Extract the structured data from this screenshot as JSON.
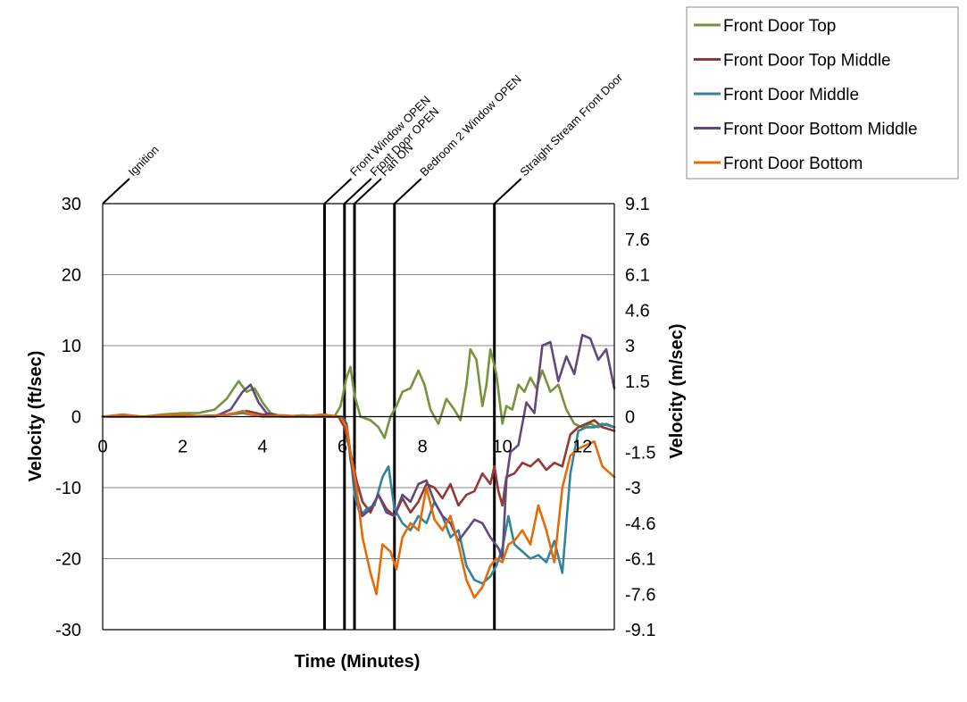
{
  "chart_data": {
    "type": "line",
    "xlabel": "Time (Minutes)",
    "ylabel": "Velocity (ft/sec)",
    "y2label": "Velocity (m/sec)",
    "xlim": [
      0,
      12.8
    ],
    "ylim": [
      -30,
      30
    ],
    "x_ticks": [
      0,
      2,
      4,
      6,
      8,
      10,
      12
    ],
    "y_ticks": [
      30,
      20,
      10,
      0,
      -10,
      -20,
      -30
    ],
    "y2_ticks": [
      "9.1",
      "7.6",
      "6.1",
      "4.6",
      "3",
      "1.5",
      "0",
      "-1.5",
      "-3",
      "-4.6",
      "-6.1",
      "-7.6",
      "-9.1"
    ],
    "grid": "horizontal",
    "legend_position": "top-right",
    "events": [
      {
        "label": "Ignition",
        "x": 0
      },
      {
        "label": "Front Window OPEN",
        "x": 5.55
      },
      {
        "label": "Front Door OPEN",
        "x": 6.05
      },
      {
        "label": "Fan ON",
        "x": 6.3
      },
      {
        "label": "Bedroom 2 Window OPEN",
        "x": 7.3
      },
      {
        "label": "Straight Stream Front Door",
        "x": 9.8
      }
    ],
    "series": [
      {
        "name": "Front Door Top",
        "color": "#77933c",
        "x": [
          0,
          0.5,
          1,
          1.5,
          2,
          2.4,
          2.8,
          3.1,
          3.4,
          3.6,
          3.8,
          4.0,
          4.2,
          4.5,
          5.0,
          5.5,
          5.8,
          5.95,
          6.1,
          6.2,
          6.3,
          6.45,
          6.7,
          6.9,
          7.05,
          7.2,
          7.35,
          7.5,
          7.7,
          7.9,
          8.05,
          8.2,
          8.4,
          8.6,
          8.8,
          8.95,
          9.1,
          9.2,
          9.35,
          9.5,
          9.6,
          9.7,
          9.85,
          10.0,
          10.1,
          10.25,
          10.4,
          10.55,
          10.7,
          10.85,
          11.0,
          11.2,
          11.4,
          11.6,
          11.8,
          12.0,
          12.2,
          12.4,
          12.6,
          12.8
        ],
        "y": [
          0,
          0.2,
          0,
          0.3,
          0.5,
          0.5,
          1.0,
          2.5,
          5.0,
          3.5,
          4.0,
          2.0,
          0.5,
          0,
          0.2,
          0,
          0,
          1.5,
          5.5,
          7.0,
          3.0,
          0,
          -0.5,
          -1.5,
          -3.0,
          0,
          1.5,
          3.5,
          4.0,
          6.5,
          4.5,
          1.0,
          -1.0,
          2.5,
          1.0,
          -0.5,
          4.5,
          9.5,
          8.0,
          1.5,
          4.5,
          9.5,
          6.0,
          -1.0,
          1.5,
          1.0,
          4.5,
          3.5,
          5.5,
          4.0,
          6.5,
          3.5,
          4.5,
          1.0,
          -1.0,
          -1.5,
          -1.0,
          -1.5,
          -1.0,
          -1.5
        ]
      },
      {
        "name": "Front Door Top Middle",
        "color": "#953735",
        "x": [
          0,
          1,
          2,
          3,
          3.4,
          3.6,
          4,
          5,
          5.5,
          5.9,
          6.05,
          6.2,
          6.35,
          6.5,
          6.7,
          6.9,
          7.1,
          7.3,
          7.5,
          7.7,
          7.9,
          8.1,
          8.3,
          8.5,
          8.7,
          8.9,
          9.1,
          9.3,
          9.5,
          9.7,
          9.8,
          9.9,
          10.0,
          10.1,
          10.3,
          10.5,
          10.7,
          10.9,
          11.1,
          11.3,
          11.5,
          11.7,
          11.9,
          12.1,
          12.3,
          12.5,
          12.8
        ],
        "y": [
          0,
          0,
          0,
          0.2,
          0.5,
          0.8,
          0.3,
          0,
          0,
          0,
          -1.5,
          -5.0,
          -9.0,
          -12.0,
          -13.5,
          -11.0,
          -13.0,
          -14.0,
          -11.5,
          -13.5,
          -12.0,
          -9.5,
          -10.0,
          -11.5,
          -9.5,
          -12.5,
          -11.0,
          -10.5,
          -8.0,
          -9.5,
          -7.0,
          -10.5,
          -12.5,
          -8.5,
          -8.0,
          -6.5,
          -7.0,
          -6.0,
          -7.5,
          -6.5,
          -7.0,
          -2.5,
          -1.5,
          -1.0,
          -0.5,
          -1.5,
          -2.0
        ]
      },
      {
        "name": "Front Door Middle",
        "color": "#31849b",
        "x": [
          0,
          1,
          2,
          3,
          3.5,
          3.7,
          4,
          5,
          5.5,
          6.0,
          6.1,
          6.2,
          6.3,
          6.45,
          6.6,
          6.8,
          7.0,
          7.15,
          7.3,
          7.5,
          7.7,
          7.9,
          8.1,
          8.3,
          8.5,
          8.7,
          8.9,
          9.1,
          9.3,
          9.5,
          9.7,
          9.85,
          10.0,
          10.15,
          10.3,
          10.5,
          10.7,
          10.9,
          11.1,
          11.3,
          11.5,
          11.7,
          11.9,
          12.1,
          12.3,
          12.5,
          12.8
        ],
        "y": [
          0,
          0,
          0,
          0.2,
          0.5,
          0.3,
          0,
          0,
          0,
          0,
          -1.0,
          -5.0,
          -11.0,
          -14.0,
          -13.0,
          -12.5,
          -8.5,
          -7.0,
          -13.0,
          -15.0,
          -16.0,
          -14.0,
          -15.0,
          -12.0,
          -14.0,
          -17.0,
          -16.0,
          -21.0,
          -23.0,
          -23.5,
          -22.5,
          -21.0,
          -18.5,
          -14.0,
          -18.0,
          -19.0,
          -20.0,
          -19.5,
          -20.5,
          -17.5,
          -22.0,
          -8.0,
          -2.0,
          -1.5,
          -1.5,
          -1.0,
          -1.5
        ]
      },
      {
        "name": "Front Door Bottom Middle",
        "color": "#604a7b",
        "x": [
          0,
          1,
          2,
          2.8,
          3.2,
          3.5,
          3.7,
          3.9,
          4.1,
          4.5,
          5.0,
          5.5,
          5.95,
          6.1,
          6.2,
          6.35,
          6.5,
          6.7,
          6.9,
          7.1,
          7.3,
          7.5,
          7.7,
          7.9,
          8.1,
          8.3,
          8.5,
          8.7,
          8.9,
          9.1,
          9.3,
          9.5,
          9.7,
          9.9,
          10.0,
          10.1,
          10.2,
          10.4,
          10.6,
          10.8,
          11.0,
          11.2,
          11.4,
          11.6,
          11.8,
          12.0,
          12.2,
          12.4,
          12.6,
          12.8
        ],
        "y": [
          0,
          0,
          0,
          0,
          1.0,
          3.5,
          4.5,
          2.0,
          0.5,
          0,
          0,
          0,
          0,
          -1.0,
          -6.0,
          -11.0,
          -14.0,
          -13.0,
          -11.0,
          -13.5,
          -14.0,
          -11.0,
          -12.0,
          -9.5,
          -9.0,
          -12.0,
          -14.0,
          -15.0,
          -17.5,
          -16.0,
          -14.5,
          -15.0,
          -17.0,
          -18.5,
          -20.0,
          -9.0,
          -5.0,
          -4.0,
          2.0,
          0.5,
          10.0,
          10.5,
          5.0,
          8.5,
          6.0,
          11.5,
          11.0,
          8.0,
          9.5,
          4.0
        ]
      },
      {
        "name": "Front Door Bottom",
        "color": "#e36c09",
        "x": [
          0,
          0.5,
          1,
          1.5,
          2,
          2.5,
          3,
          3.3,
          3.5,
          3.7,
          4,
          4.5,
          5,
          5.5,
          5.95,
          6.1,
          6.2,
          6.35,
          6.5,
          6.7,
          6.85,
          7.0,
          7.2,
          7.35,
          7.5,
          7.7,
          7.9,
          8.1,
          8.3,
          8.5,
          8.7,
          8.9,
          9.1,
          9.3,
          9.5,
          9.7,
          9.85,
          10.0,
          10.15,
          10.3,
          10.5,
          10.7,
          10.9,
          11.1,
          11.3,
          11.5,
          11.7,
          11.9,
          12.1,
          12.3,
          12.5,
          12.8
        ],
        "y": [
          0,
          0.3,
          0,
          0.2,
          0.3,
          0,
          0.2,
          0.5,
          0.8,
          0.3,
          0,
          0.2,
          0,
          0.3,
          0,
          -1.5,
          -5.0,
          -10.0,
          -17.0,
          -22.0,
          -25.0,
          -18.0,
          -19.0,
          -21.5,
          -17.0,
          -15.0,
          -16.0,
          -10.0,
          -14.5,
          -16.0,
          -14.0,
          -18.0,
          -23.0,
          -25.5,
          -24.0,
          -21.0,
          -20.0,
          -20.5,
          -18.0,
          -17.5,
          -16.0,
          -18.0,
          -12.5,
          -16.0,
          -20.5,
          -10.0,
          -5.5,
          -4.5,
          -4.0,
          -3.5,
          -7.0,
          -8.5
        ]
      }
    ]
  }
}
